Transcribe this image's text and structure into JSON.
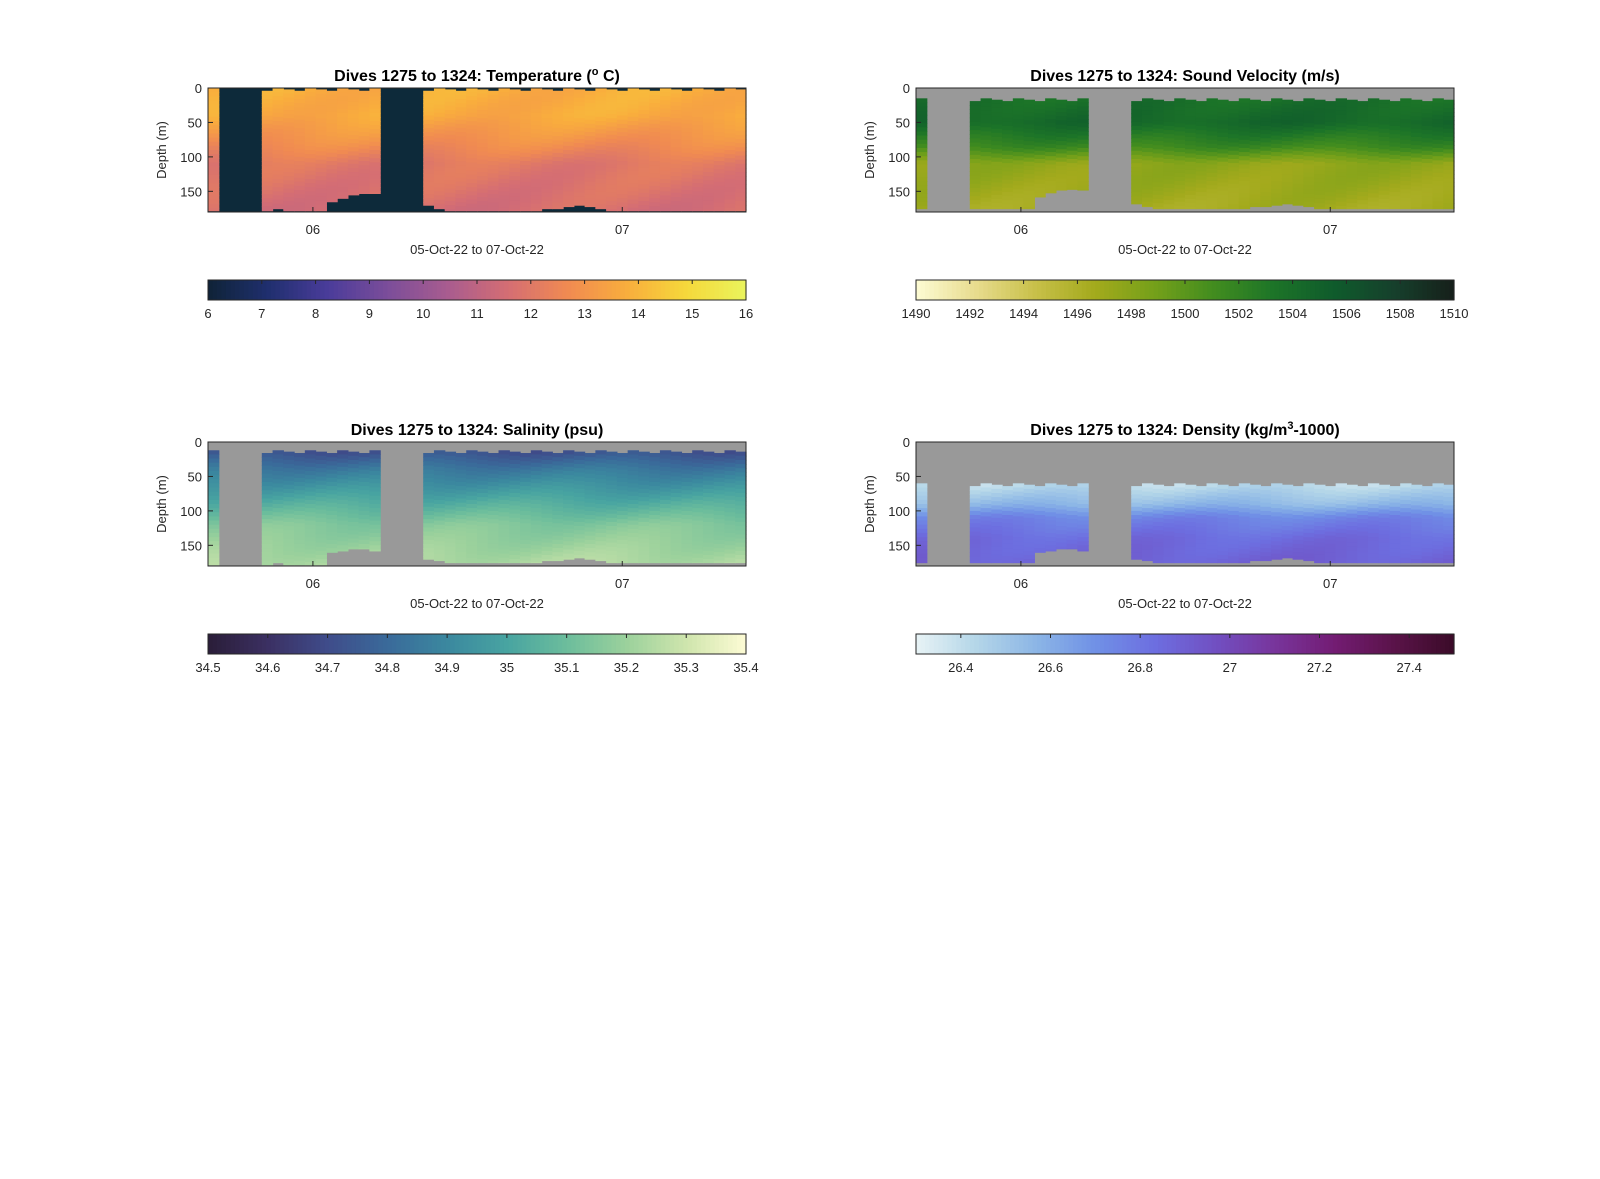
{
  "figure": {
    "background": "#ffffff",
    "nodata_color": "#999999"
  },
  "chart_data": [
    {
      "type": "heatmap",
      "title": "Dives 1275 to 1324: Temperature (",
      "title_sup": "o",
      "title_tail": " C)",
      "xlabel": "05-Oct-22 to 07-Oct-22",
      "ylabel": "Depth (m)",
      "x_ticks": [
        "06",
        "07"
      ],
      "x_tick_pos": [
        0.195,
        0.77
      ],
      "ylim": [
        0,
        180
      ],
      "y_ticks": [
        0,
        50,
        100,
        150
      ],
      "gap_color": "#0d2a3a",
      "bottom_depth": [
        178,
        178,
        178,
        178,
        178,
        178,
        175,
        178,
        178,
        178,
        178,
        165,
        160,
        155,
        153,
        153,
        153,
        155,
        160,
        165,
        170,
        175,
        178,
        178,
        178,
        178,
        178,
        178,
        178,
        178,
        178,
        175,
        175,
        172,
        170,
        172,
        175,
        178,
        178,
        178,
        178,
        178,
        178,
        178,
        178,
        178,
        178,
        178,
        178,
        178
      ],
      "gaps": [
        [
          0.02,
          0.1
        ],
        [
          0.32,
          0.4
        ]
      ],
      "layers": [
        {
          "depth": 0,
          "value": 13.8
        },
        {
          "depth": 40,
          "value": 13.7
        },
        {
          "depth": 80,
          "value": 12.8
        },
        {
          "depth": 110,
          "value": 12.0
        },
        {
          "depth": 180,
          "value": 11.6
        }
      ],
      "colorbar": {
        "range": [
          6,
          16
        ],
        "ticks": [
          6,
          7,
          8,
          9,
          10,
          11,
          12,
          13,
          14,
          15,
          16
        ],
        "colors": [
          "#0f2337",
          "#1f2f6e",
          "#4a3c9a",
          "#7b4d9a",
          "#a85c8f",
          "#d46d74",
          "#f08a52",
          "#f9ad3d",
          "#f5d83b",
          "#eaf45c"
        ]
      }
    },
    {
      "type": "heatmap",
      "title": "Dives 1275 to 1324: Sound Velocity (m/s)",
      "title_sup": "",
      "title_tail": "",
      "xlabel": "05-Oct-22 to 07-Oct-22",
      "ylabel": "Depth (m)",
      "x_ticks": [
        "06",
        "07"
      ],
      "x_tick_pos": [
        0.195,
        0.77
      ],
      "ylim": [
        0,
        180
      ],
      "y_ticks": [
        0,
        50,
        100,
        150
      ],
      "gap_color": "#999999",
      "top_depth": 15,
      "bottom_depth": [
        175,
        175,
        175,
        175,
        175,
        175,
        175,
        175,
        175,
        175,
        175,
        158,
        152,
        148,
        147,
        148,
        150,
        155,
        160,
        165,
        168,
        172,
        175,
        175,
        175,
        175,
        175,
        175,
        175,
        175,
        175,
        172,
        172,
        170,
        168,
        170,
        172,
        175,
        175,
        175,
        175,
        175,
        175,
        175,
        175,
        175,
        175,
        175,
        175,
        175
      ],
      "gaps": [
        [
          0.02,
          0.1
        ],
        [
          0.32,
          0.4
        ]
      ],
      "layers": [
        {
          "depth": 0,
          "value": 1503.5
        },
        {
          "depth": 50,
          "value": 1504.5
        },
        {
          "depth": 85,
          "value": 1501.5
        },
        {
          "depth": 110,
          "value": 1497.5
        },
        {
          "depth": 180,
          "value": 1496.5
        }
      ],
      "colorbar": {
        "range": [
          1490,
          1510
        ],
        "ticks": [
          1490,
          1492,
          1494,
          1496,
          1498,
          1500,
          1502,
          1504,
          1506,
          1508,
          1510
        ],
        "colors": [
          "#fdfbd4",
          "#e8dc8e",
          "#c8c049",
          "#a3aa1c",
          "#74a01a",
          "#418c1f",
          "#1c7428",
          "#0f5b2c",
          "#16402c",
          "#161f1a"
        ]
      }
    },
    {
      "type": "heatmap",
      "title": "Dives 1275 to 1324: Salinity (psu)",
      "title_sup": "",
      "title_tail": "",
      "xlabel": "05-Oct-22 to 07-Oct-22",
      "ylabel": "Depth (m)",
      "x_ticks": [
        "06",
        "07"
      ],
      "x_tick_pos": [
        0.195,
        0.77
      ],
      "ylim": [
        0,
        180
      ],
      "y_ticks": [
        0,
        50,
        100,
        150
      ],
      "gap_color": "#999999",
      "top_depth": 12,
      "bottom_depth": [
        178,
        178,
        178,
        178,
        178,
        178,
        175,
        178,
        178,
        178,
        178,
        160,
        158,
        155,
        155,
        158,
        160,
        162,
        165,
        168,
        170,
        172,
        175,
        175,
        175,
        175,
        175,
        175,
        175,
        175,
        175,
        172,
        172,
        170,
        168,
        170,
        172,
        175,
        175,
        175,
        175,
        175,
        175,
        175,
        175,
        175,
        175,
        175,
        175,
        175
      ],
      "gaps": [
        [
          0.02,
          0.1
        ],
        [
          0.32,
          0.4
        ]
      ],
      "layers": [
        {
          "depth": 0,
          "value": 34.65
        },
        {
          "depth": 40,
          "value": 34.85
        },
        {
          "depth": 80,
          "value": 35.0
        },
        {
          "depth": 120,
          "value": 35.15
        },
        {
          "depth": 180,
          "value": 35.25
        }
      ],
      "colorbar": {
        "range": [
          34.5,
          35.4
        ],
        "ticks": [
          "34.5",
          "34.6",
          "34.7",
          "34.8",
          "34.9",
          "35",
          "35.1",
          "35.2",
          "35.3",
          "35.4"
        ],
        "colors": [
          "#2a1d38",
          "#3b3062",
          "#3f4c8a",
          "#3a6a9a",
          "#3b889f",
          "#48a4a1",
          "#6cbd9c",
          "#9bd19c",
          "#cfe5ad",
          "#fdfbd4"
        ]
      }
    },
    {
      "type": "heatmap",
      "title": "Dives 1275 to 1324: Density (kg/m",
      "title_sup": "3",
      "title_tail": "-1000)",
      "xlabel": "05-Oct-22 to 07-Oct-22",
      "ylabel": "Depth (m)",
      "x_ticks": [
        "06",
        "07"
      ],
      "x_tick_pos": [
        0.195,
        0.77
      ],
      "ylim": [
        0,
        180
      ],
      "y_ticks": [
        0,
        50,
        100,
        150
      ],
      "gap_color": "#999999",
      "top_depth": 60,
      "bottom_depth": [
        175,
        175,
        175,
        175,
        175,
        175,
        175,
        175,
        175,
        175,
        175,
        160,
        158,
        155,
        155,
        158,
        160,
        162,
        165,
        168,
        170,
        172,
        175,
        175,
        175,
        175,
        175,
        175,
        175,
        175,
        175,
        172,
        172,
        170,
        168,
        170,
        172,
        175,
        175,
        175,
        175,
        175,
        175,
        175,
        175,
        175,
        175,
        175,
        175,
        175
      ],
      "gaps": [
        [
          0.02,
          0.1
        ],
        [
          0.32,
          0.4
        ]
      ],
      "layers": [
        {
          "depth": 60,
          "value": 26.4
        },
        {
          "depth": 90,
          "value": 26.55
        },
        {
          "depth": 110,
          "value": 26.75
        },
        {
          "depth": 140,
          "value": 26.85
        },
        {
          "depth": 180,
          "value": 26.9
        }
      ],
      "colorbar": {
        "range": [
          26.3,
          27.5
        ],
        "ticks": [
          "26.4",
          "26.6",
          "26.8",
          "27",
          "27.2",
          "27.4"
        ],
        "tick_values": [
          26.4,
          26.6,
          26.8,
          27.0,
          27.2,
          27.4
        ],
        "colors": [
          "#e8f3f5",
          "#b4d6e8",
          "#8cb6e6",
          "#7091e6",
          "#6d6ee0",
          "#7150c2",
          "#78359c",
          "#731c73",
          "#5a1349",
          "#3b0b28"
        ]
      }
    }
  ]
}
